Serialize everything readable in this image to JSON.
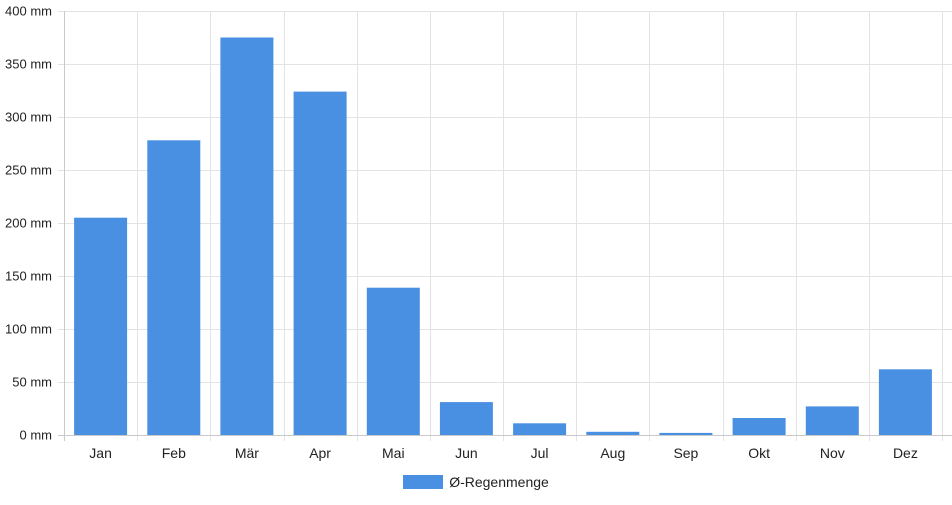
{
  "chart_data": {
    "type": "bar",
    "categories": [
      "Jan",
      "Feb",
      "Mär",
      "Apr",
      "Mai",
      "Jun",
      "Jul",
      "Aug",
      "Sep",
      "Okt",
      "Nov",
      "Dez"
    ],
    "series": [
      {
        "name": "Ø-Regenmenge",
        "values": [
          205,
          278,
          375,
          324,
          139,
          31,
          11,
          3,
          2,
          16,
          27,
          62
        ],
        "color": "#4a90e2"
      }
    ],
    "ylim": [
      0,
      400
    ],
    "yticks": [
      0,
      50,
      100,
      150,
      200,
      250,
      300,
      350,
      400
    ],
    "y_unit": "mm",
    "grid": true,
    "legend_position": "bottom-center"
  },
  "legend": {
    "label": "Ø-Regenmenge",
    "color": "#4a90e2"
  }
}
